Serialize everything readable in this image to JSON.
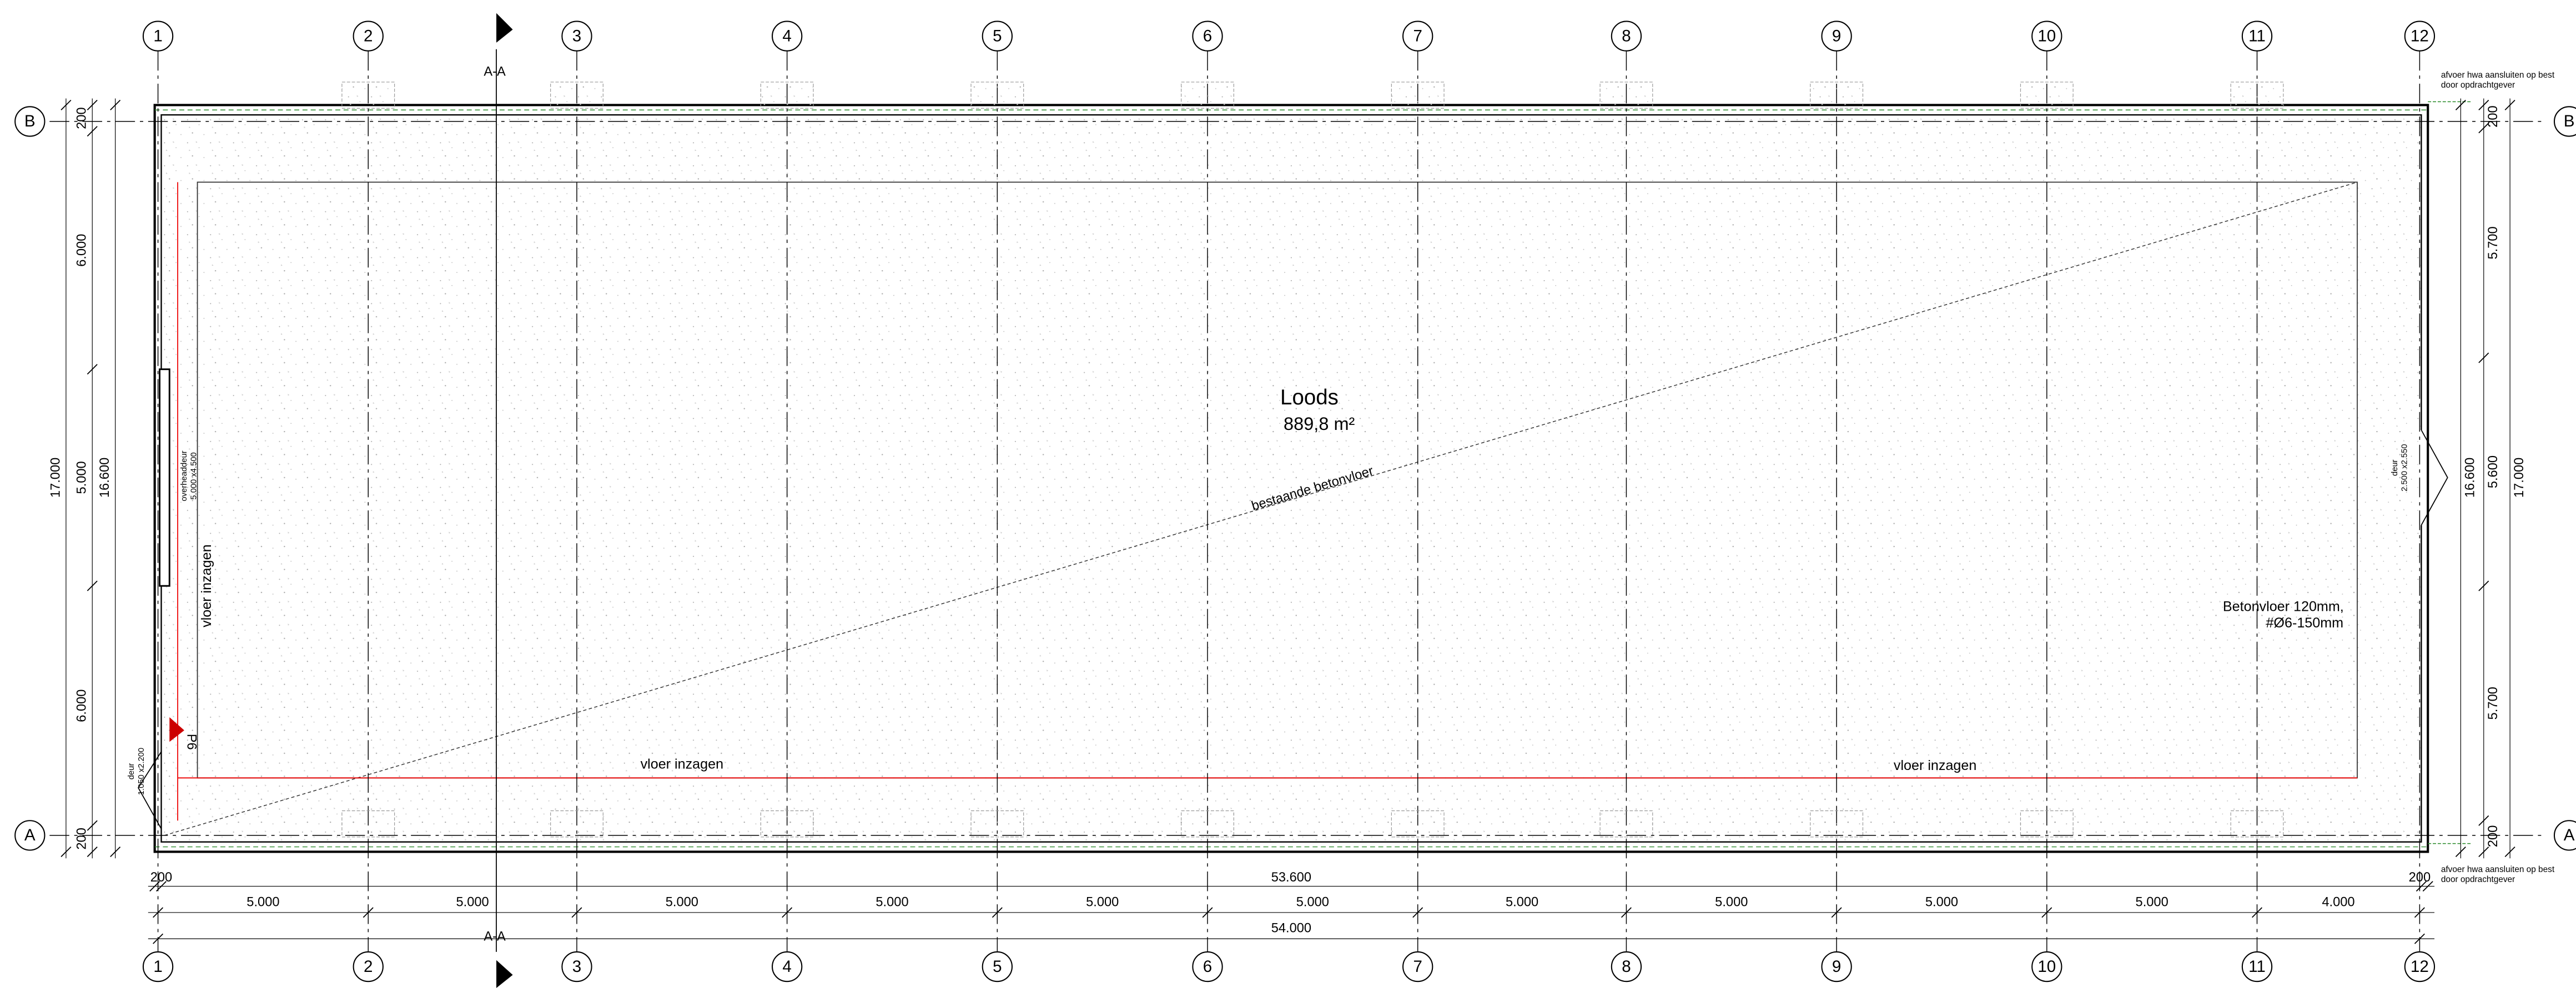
{
  "grid_columns": [
    "1",
    "2",
    "3",
    "4",
    "5",
    "6",
    "7",
    "8",
    "9",
    "10",
    "11",
    "12"
  ],
  "grid_rows": [
    "A",
    "B"
  ],
  "section_marker": "A-A",
  "room": {
    "name": "Loods",
    "area": "889,8 m²"
  },
  "floor_labels": {
    "existing": "bestaande betonvloer",
    "spec": [
      "Betonvloer 120mm,",
      "#Ø6-150mm"
    ]
  },
  "sawing_labels": [
    "vloer inzagen",
    "vloer inzagen",
    "vloer inzagen"
  ],
  "drain_notes": [
    [
      "afvoer hwa aansluiten op best",
      "door opdrachtgever"
    ],
    [
      "afvoer hwa aansluiten op best",
      "door opdrachtgever"
    ]
  ],
  "doors": [
    {
      "type": "overheaddeur",
      "size": "5.000 x4.500"
    },
    {
      "type": "deur",
      "size": "1.050 x2.200"
    },
    {
      "type": "deur",
      "size": "2.500 x2.550"
    }
  ],
  "markers": [
    "P6"
  ],
  "dimensions": {
    "bottom": {
      "inner": [
        "200",
        "53.600",
        "200"
      ],
      "bays": [
        "5.000",
        "5.000",
        "5.000",
        "5.000",
        "5.000",
        "5.000",
        "5.000",
        "5.000",
        "5.000",
        "5.000",
        "4.000"
      ],
      "total": "54.000"
    },
    "left": {
      "segments": [
        "200",
        "6.000",
        "5.000",
        "6.000",
        "200"
      ],
      "inner": "16.600",
      "total": "17.000"
    },
    "right": {
      "segments": [
        "200",
        "5.700",
        "5.600",
        "5.700",
        "200"
      ],
      "inner": "16.600",
      "total": "17.000"
    }
  }
}
